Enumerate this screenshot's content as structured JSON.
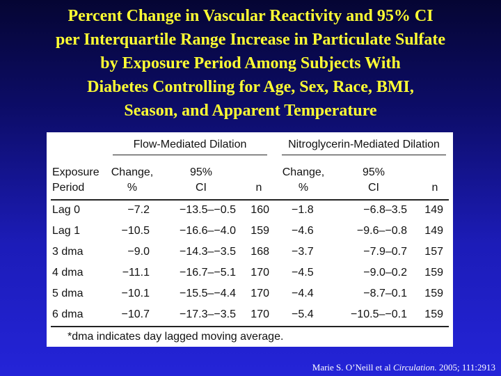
{
  "title_lines": [
    "Percent Change in Vascular Reactivity and 95% CI",
    "per Interquartile Range Increase in Particulate Sulfate",
    "by Exposure Period Among Subjects With",
    "Diabetes Controlling for Age, Sex, Race, BMI,",
    "Season, and Apparent Temperature"
  ],
  "table": {
    "group_headers": [
      "Flow-Mediated Dilation",
      "Nitroglycerin-Mediated Dilation"
    ],
    "col_headers": {
      "exposure": [
        "Exposure",
        "Period"
      ],
      "change": [
        "Change,",
        "%"
      ],
      "ci": [
        "95%",
        "CI"
      ],
      "n": "n"
    },
    "rows": [
      {
        "period": "Lag 0",
        "fmd_change": "−7.2",
        "fmd_ci": "−13.5–−0.5",
        "fmd_n": "160",
        "nmd_change": "−1.8",
        "nmd_ci": "−6.8–3.5",
        "nmd_n": "149"
      },
      {
        "period": "Lag 1",
        "fmd_change": "−10.5",
        "fmd_ci": "−16.6–−4.0",
        "fmd_n": "159",
        "nmd_change": "−4.6",
        "nmd_ci": "−9.6–−0.8",
        "nmd_n": "149"
      },
      {
        "period": "3 dma",
        "fmd_change": "−9.0",
        "fmd_ci": "−14.3–−3.5",
        "fmd_n": "168",
        "nmd_change": "−3.7",
        "nmd_ci": "−7.9–0.7",
        "nmd_n": "157"
      },
      {
        "period": "4 dma",
        "fmd_change": "−11.1",
        "fmd_ci": "−16.7–−5.1",
        "fmd_n": "170",
        "nmd_change": "−4.5",
        "nmd_ci": "−9.0–0.2",
        "nmd_n": "159"
      },
      {
        "period": "5 dma",
        "fmd_change": "−10.1",
        "fmd_ci": "−15.5–−4.4",
        "fmd_n": "170",
        "nmd_change": "−4.4",
        "nmd_ci": "−8.7–0.1",
        "nmd_n": "159"
      },
      {
        "period": "6 dma",
        "fmd_change": "−10.7",
        "fmd_ci": "−17.3–−3.5",
        "fmd_n": "170",
        "nmd_change": "−5.4",
        "nmd_ci": "−10.5–−0.1",
        "nmd_n": "159"
      }
    ],
    "footnote": "*dma indicates day lagged moving average."
  },
  "citation": {
    "author": "Marie S. O’Neill et al ",
    "journal": "Circulation.",
    "ref": " 2005; 111:2913"
  },
  "colors": {
    "title": "#ffff33",
    "background_top": "#050533",
    "background_bottom": "#2424d8"
  }
}
